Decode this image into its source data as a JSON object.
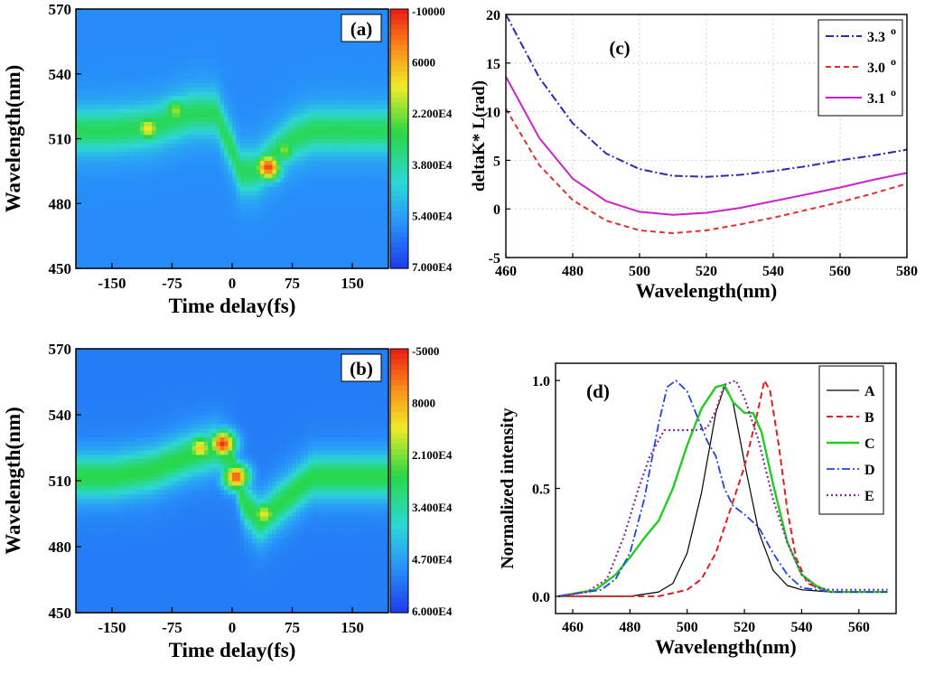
{
  "chart_data": [
    {
      "panel": "(a)",
      "type": "heatmap",
      "xlabel": "Time delay(fs)",
      "ylabel": "Wavelength(nm)",
      "xticks": [
        "-150",
        "-75",
        "0",
        "75",
        "150"
      ],
      "yticks": [
        "450",
        "480",
        "510",
        "540",
        "570"
      ],
      "xlim": [
        -195,
        195
      ],
      "ylim": [
        450,
        570
      ],
      "colorbar": [
        "-10000",
        "6000",
        "2.200E4",
        "3.800E4",
        "5.400E4",
        "7.000E4"
      ],
      "colorbar_range": [
        -10000,
        70000
      ],
      "ridge_center": [
        [
          -195,
          514
        ],
        [
          -150,
          514
        ],
        [
          -100,
          516
        ],
        [
          -50,
          522
        ],
        [
          -20,
          522
        ],
        [
          0,
          505
        ],
        [
          10,
          495
        ],
        [
          30,
          495
        ],
        [
          50,
          502
        ],
        [
          75,
          510
        ],
        [
          100,
          514
        ],
        [
          195,
          514
        ]
      ],
      "hotspots": [
        {
          "t": 45,
          "wl": 497,
          "value": 66000
        },
        {
          "t": -105,
          "wl": 515,
          "value": 48000
        },
        {
          "t": -70,
          "wl": 523,
          "value": 40000
        },
        {
          "t": 65,
          "wl": 505,
          "value": 38000
        }
      ]
    },
    {
      "panel": "(b)",
      "type": "heatmap",
      "xlabel": "Time delay(fs)",
      "ylabel": "Wavelength(nm)",
      "xticks": [
        "-150",
        "-75",
        "0",
        "75",
        "150"
      ],
      "yticks": [
        "450",
        "480",
        "510",
        "540",
        "570"
      ],
      "xlim": [
        -195,
        195
      ],
      "ylim": [
        450,
        570
      ],
      "colorbar": [
        "-5000",
        "8000",
        "2.100E4",
        "3.400E4",
        "4.700E4",
        "6.000E4"
      ],
      "colorbar_range": [
        -5000,
        60000
      ],
      "ridge_center": [
        [
          -195,
          512
        ],
        [
          -150,
          512
        ],
        [
          -100,
          515
        ],
        [
          -50,
          522
        ],
        [
          -20,
          525
        ],
        [
          0,
          520
        ],
        [
          15,
          500
        ],
        [
          35,
          492
        ],
        [
          60,
          500
        ],
        [
          100,
          512
        ],
        [
          195,
          512
        ]
      ],
      "hotspots": [
        {
          "t": -12,
          "wl": 527,
          "value": 58000
        },
        {
          "t": 5,
          "wl": 512,
          "value": 55000
        },
        {
          "t": -40,
          "wl": 525,
          "value": 44000
        },
        {
          "t": 40,
          "wl": 495,
          "value": 40000
        }
      ]
    },
    {
      "panel": "(c)",
      "type": "line",
      "xlabel": "Wavelength(nm)",
      "ylabel": "deltaK* L(rad)",
      "xlim": [
        460,
        580
      ],
      "ylim": [
        -5,
        20
      ],
      "xticks": [
        460,
        480,
        500,
        520,
        540,
        560,
        580
      ],
      "yticks": [
        -5,
        0,
        5,
        10,
        15,
        20
      ],
      "grid": true,
      "legend": "top-right",
      "series": [
        {
          "name": "3.3",
          "sup": "o",
          "color": "#2b2bb0",
          "dash": "9 3 2 3",
          "x": [
            460,
            470,
            480,
            490,
            500,
            510,
            520,
            530,
            540,
            550,
            560,
            570,
            580
          ],
          "y": [
            20,
            13.5,
            8.8,
            5.7,
            4.1,
            3.4,
            3.3,
            3.5,
            3.9,
            4.4,
            5.0,
            5.5,
            6.1
          ]
        },
        {
          "name": "3.0",
          "sup": "o",
          "color": "#e03030",
          "dash": "6 4",
          "x": [
            460,
            470,
            480,
            490,
            500,
            510,
            520,
            530,
            540,
            550,
            560,
            570,
            580
          ],
          "y": [
            10.3,
            4.5,
            0.9,
            -1.2,
            -2.2,
            -2.5,
            -2.2,
            -1.6,
            -0.9,
            -0.1,
            0.7,
            1.6,
            2.6
          ]
        },
        {
          "name": "3.1",
          "sup": "o",
          "color": "#cc22cc",
          "dash": "",
          "x": [
            460,
            470,
            480,
            490,
            500,
            510,
            520,
            530,
            540,
            550,
            560,
            570,
            580
          ],
          "y": [
            13.6,
            7.3,
            3.1,
            0.8,
            -0.3,
            -0.6,
            -0.4,
            0.1,
            0.8,
            1.5,
            2.2,
            3.0,
            3.7
          ]
        }
      ]
    },
    {
      "panel": "(d)",
      "type": "line",
      "xlabel": "Wavelength(nm)",
      "ylabel": "Normalized intensity",
      "xlim": [
        454,
        573
      ],
      "ylim": [
        -0.08,
        1.08
      ],
      "xticks": [
        460,
        480,
        500,
        520,
        540,
        560
      ],
      "yticks": [
        "0.0",
        "0.5",
        "1.0"
      ],
      "legend": "top-right",
      "series": [
        {
          "name": "A",
          "color": "#000000",
          "dash": "",
          "width": 1.2,
          "x": [
            455,
            480,
            490,
            495,
            500,
            505,
            510,
            513,
            516,
            520,
            525,
            530,
            535,
            540,
            550,
            570
          ],
          "y": [
            0.0,
            0.0,
            0.02,
            0.06,
            0.2,
            0.48,
            0.85,
            0.97,
            0.9,
            0.62,
            0.3,
            0.12,
            0.05,
            0.03,
            0.02,
            0.02
          ]
        },
        {
          "name": "B",
          "color": "#e02020",
          "dash": "7 4",
          "width": 2,
          "x": [
            455,
            490,
            500,
            505,
            510,
            515,
            520,
            524,
            527,
            529,
            532,
            535,
            538,
            542,
            550,
            570
          ],
          "y": [
            0.0,
            0.0,
            0.03,
            0.08,
            0.2,
            0.4,
            0.6,
            0.82,
            1.0,
            0.95,
            0.7,
            0.4,
            0.18,
            0.06,
            0.02,
            0.02
          ]
        },
        {
          "name": "C",
          "color": "#22cc22",
          "dash": "",
          "width": 2.4,
          "x": [
            455,
            468,
            475,
            480,
            485,
            490,
            495,
            500,
            505,
            510,
            513,
            516,
            520,
            523,
            526,
            530,
            535,
            540,
            545,
            550,
            570
          ],
          "y": [
            0.0,
            0.03,
            0.1,
            0.18,
            0.27,
            0.35,
            0.5,
            0.7,
            0.87,
            0.97,
            0.98,
            0.9,
            0.85,
            0.85,
            0.76,
            0.52,
            0.25,
            0.1,
            0.05,
            0.02,
            0.02
          ]
        },
        {
          "name": "D",
          "color": "#2244dd",
          "dash": "9 3 2 3",
          "width": 1.8,
          "x": [
            455,
            470,
            475,
            480,
            485,
            490,
            493,
            496,
            500,
            503,
            507,
            510,
            513,
            516,
            520,
            525,
            530,
            535,
            540,
            550,
            570
          ],
          "y": [
            0.0,
            0.03,
            0.08,
            0.2,
            0.45,
            0.8,
            0.97,
            1.0,
            0.95,
            0.85,
            0.72,
            0.65,
            0.5,
            0.42,
            0.38,
            0.32,
            0.2,
            0.1,
            0.04,
            0.02,
            0.02
          ]
        },
        {
          "name": "E",
          "color": "#8a2a9a",
          "dash": "2 3",
          "width": 2.2,
          "x": [
            455,
            465,
            472,
            478,
            483,
            487,
            492,
            497,
            503,
            507,
            510,
            513,
            517,
            520,
            525,
            530,
            535,
            540,
            545,
            550,
            570
          ],
          "y": [
            0.0,
            0.02,
            0.08,
            0.28,
            0.5,
            0.65,
            0.77,
            0.77,
            0.77,
            0.78,
            0.86,
            0.98,
            1.0,
            0.92,
            0.72,
            0.45,
            0.25,
            0.1,
            0.04,
            0.03,
            0.03
          ]
        }
      ]
    }
  ]
}
